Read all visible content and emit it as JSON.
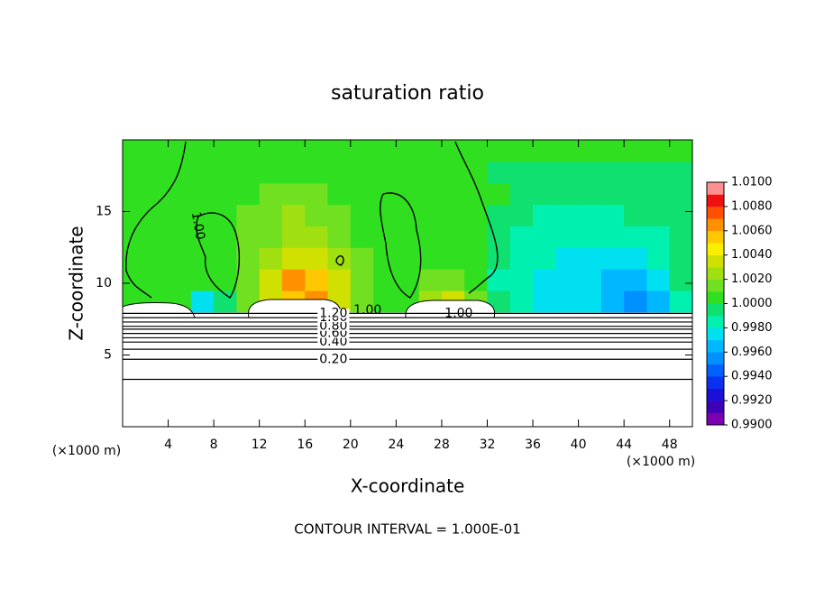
{
  "chart_data": {
    "type": "contour",
    "title": "saturation ratio",
    "xlabel": "X-coordinate",
    "ylabel": "Z-coordinate",
    "x_unit": "(×1000 m)",
    "footer": "CONTOUR INTERVAL = 1.000E-01",
    "xlim": [
      0,
      50
    ],
    "ylim": [
      0,
      20
    ],
    "xticks": [
      4,
      8,
      12,
      16,
      20,
      24,
      28,
      32,
      36,
      40,
      44,
      48
    ],
    "yticks": [
      5,
      10,
      15
    ],
    "clim": [
      0.99,
      1.01
    ],
    "colors": [
      "#7a00b0",
      "#4000b8",
      "#1a10d8",
      "#0a30f0",
      "#0060ff",
      "#0090ff",
      "#00b8ff",
      "#00e0f0",
      "#00f0b0",
      "#10e070",
      "#30e020",
      "#70e020",
      "#a0e010",
      "#d0e000",
      "#f8f000",
      "#ffc800",
      "#ff9000",
      "#ff5000",
      "#f01010",
      "#ff9090"
    ],
    "colorbar_ticks": [
      {
        "value": 0.99,
        "label": "0.9900"
      },
      {
        "value": 0.992,
        "label": "0.9920"
      },
      {
        "value": 0.994,
        "label": "0.9940"
      },
      {
        "value": 0.996,
        "label": "0.9960"
      },
      {
        "value": 0.998,
        "label": "0.9980"
      },
      {
        "value": 1.0,
        "label": "1.0000"
      },
      {
        "value": 1.002,
        "label": "1.0020"
      },
      {
        "value": 1.004,
        "label": "1.0040"
      },
      {
        "value": 1.006,
        "label": "1.0060"
      },
      {
        "value": 1.008,
        "label": "1.0080"
      },
      {
        "value": 1.01,
        "label": "1.0100"
      }
    ],
    "field": {
      "x": [
        1,
        3,
        5,
        7,
        9,
        11,
        13,
        15,
        17,
        19,
        21,
        23,
        25,
        27,
        29,
        31,
        33,
        35,
        37,
        39,
        41,
        43,
        45,
        47,
        49
      ],
      "y": [
        8.75,
        10.25,
        11.75,
        13.25,
        14.75,
        16.25,
        17.75,
        19.25
      ],
      "values": [
        [
          1.0003,
          1.0004,
          1.0002,
          0.9975,
          0.999,
          1.001,
          1.003,
          1.0055,
          1.0062,
          1.0035,
          1.001,
          1.0005,
          1.0005,
          1.002,
          1.003,
          1.001,
          0.999,
          0.998,
          0.9975,
          0.997,
          0.9975,
          0.996,
          0.995,
          0.9965,
          0.9985
        ],
        [
          1.0003,
          1.0003,
          1.0003,
          1.0,
          1.0005,
          1.0015,
          1.003,
          1.006,
          1.0055,
          1.003,
          1.001,
          1.0005,
          1.0005,
          1.0012,
          1.0015,
          1.0005,
          0.9988,
          0.998,
          0.9975,
          0.9972,
          0.9972,
          0.9965,
          0.9962,
          0.9972,
          0.999
        ],
        [
          1.0003,
          1.0003,
          1.0003,
          1.0003,
          1.0005,
          1.0012,
          1.0022,
          1.003,
          1.003,
          1.002,
          1.001,
          1.0005,
          1.0005,
          1.0008,
          1.0008,
          1.0003,
          0.9992,
          0.9985,
          0.998,
          0.9978,
          0.9978,
          0.9975,
          0.9975,
          0.998,
          0.9992
        ],
        [
          1.0003,
          1.0003,
          1.0003,
          1.0005,
          1.0008,
          1.0012,
          1.0018,
          1.0025,
          1.0022,
          1.0015,
          1.0008,
          1.0005,
          1.0005,
          1.0005,
          1.0005,
          1.0003,
          0.9995,
          0.9988,
          0.9985,
          0.9982,
          0.9982,
          0.9982,
          0.9985,
          0.9988,
          0.9995
        ],
        [
          1.0003,
          1.0003,
          1.0005,
          1.0005,
          1.0008,
          1.0012,
          1.0015,
          1.0022,
          1.0018,
          1.0012,
          1.0008,
          1.0005,
          1.0005,
          1.0005,
          1.0005,
          1.0003,
          0.9998,
          0.9992,
          0.9988,
          0.9988,
          0.9988,
          0.9988,
          0.999,
          0.9992,
          0.9998
        ],
        [
          1.0003,
          1.0003,
          1.0003,
          1.0003,
          1.0003,
          1.0008,
          1.0012,
          1.0015,
          1.0012,
          1.0008,
          1.0003,
          1.0003,
          1.0003,
          1.0003,
          1.0003,
          1.0003,
          1.0,
          0.9995,
          0.9995,
          0.9995,
          0.9995,
          0.9995,
          0.9995,
          0.9995,
          0.9995
        ],
        [
          1.0003,
          1.0003,
          1.0003,
          1.0003,
          1.0003,
          1.0003,
          1.0008,
          1.0008,
          1.0003,
          1.0003,
          1.0003,
          1.0003,
          1.0003,
          1.0003,
          1.0003,
          1.0003,
          0.9998,
          0.9998,
          0.9998,
          0.9998,
          0.9998,
          0.9998,
          0.9998,
          0.9998,
          0.9998
        ],
        [
          1.0003,
          1.0003,
          1.0003,
          1.0003,
          1.0003,
          1.0003,
          1.0003,
          1.0003,
          1.0003,
          1.0003,
          1.0003,
          1.0003,
          1.0003,
          1.0003,
          1.0003,
          1.0003,
          1.0,
          1.0,
          1.0,
          1.0,
          1.0,
          1.0,
          1.0,
          1.0,
          1.0
        ]
      ]
    },
    "contours": [
      {
        "level": 0.1,
        "z": 3.3
      },
      {
        "level": {
          "value": 0.2,
          "label": "0.20"
        },
        "z": 4.7
      },
      {
        "level": 0.3,
        "z": 5.4
      },
      {
        "level": {
          "value": 0.4,
          "label": "0.40"
        },
        "z": 5.9
      },
      {
        "level": 0.5,
        "z": 6.2
      },
      {
        "level": {
          "value": 0.6,
          "label": "0.60"
        },
        "z": 6.5
      },
      {
        "level": 0.7,
        "z": 6.8
      },
      {
        "level": {
          "value": 0.8,
          "label": "0.80"
        },
        "z": 7.0
      },
      {
        "level": 0.9,
        "z": 7.3
      },
      {
        "level": {
          "value": 1.0,
          "label": "1.00"
        },
        "z": 7.6
      },
      {
        "level": {
          "value": 1.2,
          "label": "1.20"
        },
        "z": 7.9
      }
    ]
  }
}
